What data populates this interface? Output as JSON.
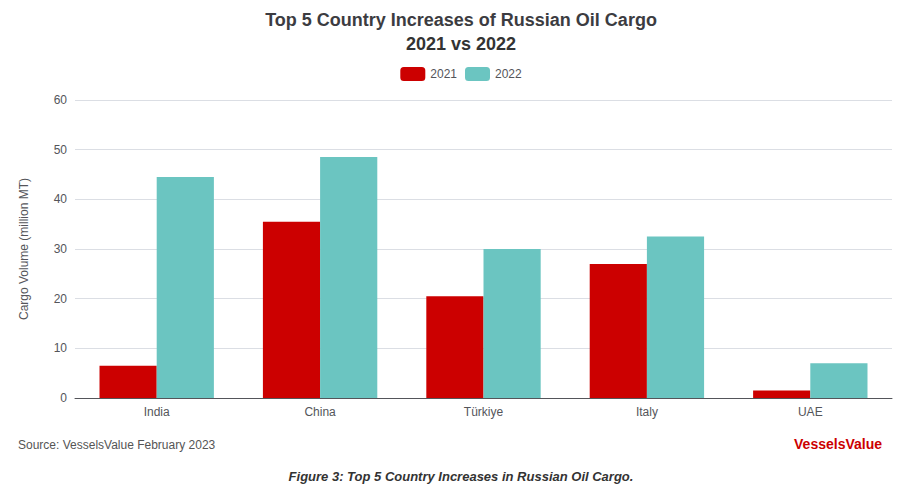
{
  "chart_data": {
    "type": "bar",
    "title": "Top 5 Country Increases of Russian Oil Cargo",
    "subtitle": "2021 vs 2022",
    "categories": [
      "India",
      "China",
      "Türkiye",
      "Italy",
      "UAE"
    ],
    "series": [
      {
        "name": "2021",
        "color": "#cc0000",
        "values": [
          6.5,
          35.5,
          20.5,
          27.0,
          1.5
        ]
      },
      {
        "name": "2022",
        "color": "#6bc5c1",
        "values": [
          44.5,
          48.5,
          30.0,
          32.5,
          7.0
        ]
      }
    ],
    "ylabel": "Cargo Volume (million MT)",
    "ylim": [
      0,
      60
    ],
    "yticks": [
      0,
      10,
      20,
      30,
      40,
      50,
      60
    ],
    "grid": true,
    "legend": "top",
    "annotations": [
      "Source: VesselsValue February 2023",
      "VesselsValue",
      "Figure 3: Top 5 Country Increases in Russian Oil Cargo."
    ]
  }
}
